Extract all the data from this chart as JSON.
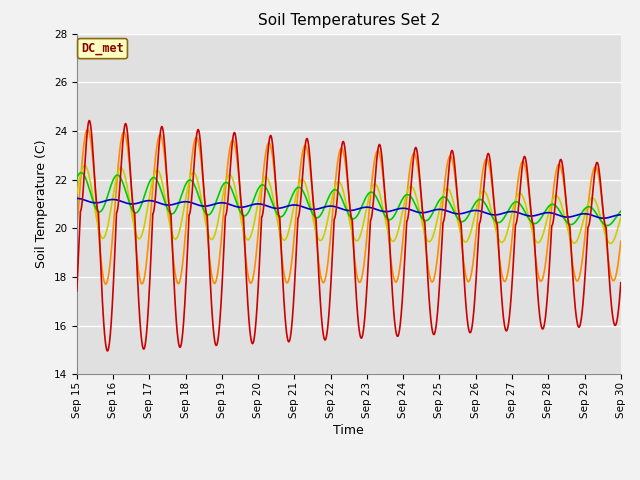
{
  "title": "Soil Temperatures Set 2",
  "xlabel": "Time",
  "ylabel": "Soil Temperature (C)",
  "ylim": [
    14,
    28
  ],
  "xlim": [
    0,
    15
  ],
  "x_tick_labels": [
    "Sep 15",
    "Sep 16",
    "Sep 17",
    "Sep 18",
    "Sep 19",
    "Sep 20",
    "Sep 21",
    "Sep 22",
    "Sep 23",
    "Sep 24",
    "Sep 25",
    "Sep 26",
    "Sep 27",
    "Sep 28",
    "Sep 29",
    "Sep 30"
  ],
  "annotation_label": "DC_met",
  "annotation_text_color": "#8B0000",
  "annotation_bg_color": "#FFFFC0",
  "annotation_border_color": "#8B6914",
  "series_colors": {
    "-32cm": "#0000CC",
    "-16cm": "#00CC00",
    "-8cm": "#CCCC00",
    "-4cm": "#FF8C00",
    "-2cm": "#CC0000"
  },
  "background_color": "#E0E0E0",
  "grid_color": "#FFFFFF",
  "title_fontsize": 11,
  "axis_label_fontsize": 9,
  "tick_fontsize": 7.5,
  "legend_fontsize": 9
}
